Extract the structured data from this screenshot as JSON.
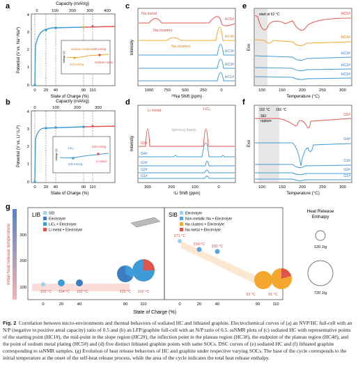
{
  "panels": {
    "a": {
      "letter": "a",
      "top_axis_label": "Capacity (mAh/g)",
      "top_ticks": [
        "0",
        "100",
        "200",
        "300",
        "400"
      ],
      "ylabel": "Potential (V vs. Na⁺/Na⁰)",
      "yticks": [
        "0",
        "1",
        "2",
        "3",
        "4"
      ],
      "xlabel": "State of Charge (%)",
      "xticks": [
        "0",
        "20",
        "40",
        "90",
        "110"
      ],
      "inset": {
        "ylabel": "Voltage (V)",
        "ann_cluster": "Sodium clusters",
        "ann_cluster_value": "270 mAh/g",
        "ann_metal": "Sodium metal",
        "ann_metal_value": "326 mAh/g"
      }
    },
    "b": {
      "letter": "b",
      "top_axis_label": "Capacity (mAh/g)",
      "top_ticks": [
        "0",
        "100",
        "200",
        "300"
      ],
      "ylabel": "Potential (V vs. Li⁺/Li⁰)",
      "yticks": [
        "0",
        "1",
        "2",
        "3",
        "4"
      ],
      "xlabel": "State of Charge (%)",
      "xticks": [
        "0",
        "20",
        "40",
        "90",
        "110"
      ],
      "inset": {
        "ylabel": "Voltage (V)",
        "ann_lic6": "LiC₆",
        "ann_lic6_value": "340 mAh/g",
        "ann_metal": "Li metal",
        "ann_metal_value": "420 mAh/g"
      }
    },
    "c": {
      "letter": "c",
      "ylabel": "Intensity",
      "xlabel": "²³Na Shift (ppm)",
      "xticks": [
        "1000",
        "750",
        "500",
        "250",
        "0"
      ],
      "ann_metal": "Na metal",
      "ann_clusters_1": "Na clusters",
      "ann_clusters_2": "Na clusters",
      "labels": [
        "HC5#",
        "HC4#",
        "HC3#",
        "HC2#",
        "HC1#"
      ]
    },
    "d": {
      "letter": "d",
      "ylabel": "Intensity",
      "xlabel": "⁷Li Shift (ppm)",
      "xticks": [
        "300",
        "200",
        "100",
        "0"
      ],
      "ann_metal": "Li metal",
      "ann_lic6": "LiCₓ",
      "ann_bands": "Spinning bands",
      "labels": [
        "G5#",
        "G4#",
        "G3#",
        "G2#",
        "G1#"
      ]
    },
    "e": {
      "letter": "e",
      "ylabel": "Exo",
      "xlabel": "Temperature (°C)",
      "xticks": [
        "100",
        "150",
        "200",
        "250",
        "300"
      ],
      "ann_start": "start at 92 °C",
      "labels": [
        "HC5#",
        "HC4#",
        "HC3#",
        "HC2#",
        "HC1#"
      ]
    },
    "f": {
      "letter": "f",
      "ylabel": "Exo",
      "xlabel": "Temperature (°C)",
      "xticks": [
        "100",
        "150",
        "200",
        "250",
        "300"
      ],
      "ann_t1": "102 °C",
      "ann_t2": "150 °C",
      "ann_sei_1": "SEI",
      "ann_sei_2": "rupture",
      "labels": [
        "G5#",
        "G4#",
        "G3#",
        "G2#",
        "G1#"
      ]
    },
    "g": {
      "letter": "g",
      "ylabel": "Initial heat release temperature",
      "yticks": [
        "100",
        "200",
        "300"
      ],
      "xlabel": "State of Charge (%)",
      "lib_title": "LIB",
      "lib_legend": [
        "SEI",
        "Electrolyte",
        "LiCₓ + Electrolyte",
        "Li metal + Electrolyte"
      ],
      "lib_xticks": [
        "0",
        "20",
        "40",
        "90",
        "110"
      ],
      "lib_temps": [
        "102 °C",
        "104 °C",
        "102 °C",
        "102 °C",
        "102 °C"
      ],
      "sib_title": "SIB",
      "sib_legend": [
        "Electrolyte",
        "Non-metallic Na + Electrolyte",
        "Na clusters + Electrolyte",
        "Na metal + Electrolyte"
      ],
      "sib_xticks": [
        "0",
        "20",
        "40",
        "90",
        "110"
      ],
      "sib_temps": [
        "271 °C",
        "210 °C",
        "202 °C",
        "92 °C",
        "91 °C"
      ],
      "enthalpy_title_1": "Heat Release",
      "enthalpy_title_2": "Enthalpy",
      "enthalpy_small": "120 J/g",
      "enthalpy_large": "720 J/g"
    }
  },
  "caption": {
    "label": "Fig. 2",
    "text": "Correlation between micro-environments and thermal behaviors of sodiated HC and lithiated graphite. Electrochemical curves of (a) an NVP/HC full-cell with an N/P (negative to positive areal capacity) ratio of 0.5 and (b) an LFP/graphite full-cell with an N/P ratio of 0.5. ssNMR plots of (c) sodiated HC with representative points of the starting point (HC1#), the mid-point in the slope region (HC2#), the inflection point in the plateau region (HC3#), the endpoint of the plateau region (HC4#), and the point of sodium metal plating (HC5#) and (d) five distinct lithiated graphite points with same SOCs. DSC curves of (e) sodiated HC and (f) lithiated graphite corresponding to ssNMR samples. (g) Evolution of heat release behaviors of HC and graphite under respective varying SOCs. The base of the cycle corresponds to the initial temperature at the onset of the self-heat release process, while the area of the cycle indicates the total heat release enthalpy."
  }
}
